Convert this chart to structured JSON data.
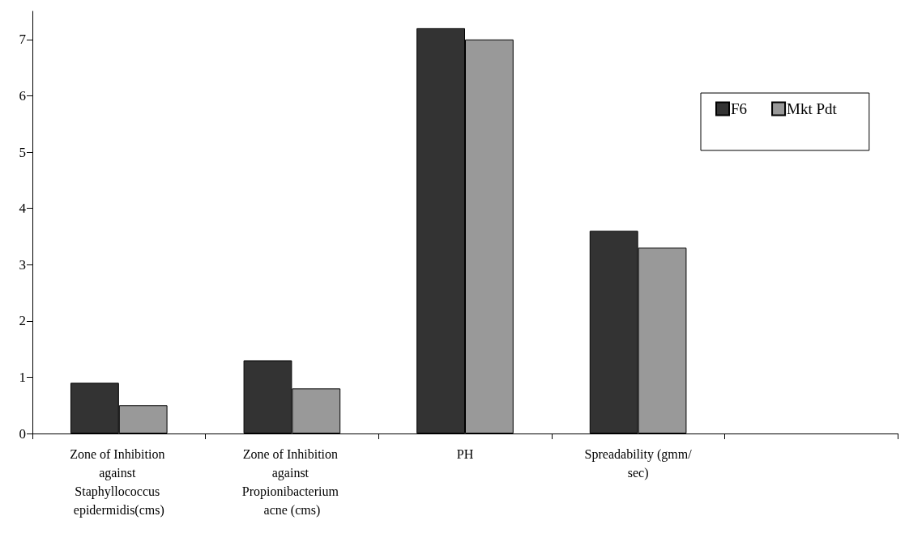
{
  "chart_data": {
    "type": "bar",
    "categories": [
      "Zone of Inhibition against Staphyllococcus epidermidis(cms)",
      "Zone of Inhibition against Propionibacterium acne (cms)",
      "PH",
      "Spreadability (gmm/sec)",
      null
    ],
    "series": [
      {
        "name": "F6",
        "color": "#333333",
        "values": [
          0.9,
          1.3,
          7.2,
          3.6,
          null
        ]
      },
      {
        "name": "Mkt Pdt",
        "color": "#999999",
        "values": [
          0.5,
          0.8,
          7.0,
          3.3,
          null
        ]
      }
    ],
    "ylim": [
      0,
      7.5
    ],
    "yticks": [
      0,
      1,
      2,
      3,
      4,
      5,
      6,
      7
    ],
    "grid": false,
    "legend": "top right"
  }
}
